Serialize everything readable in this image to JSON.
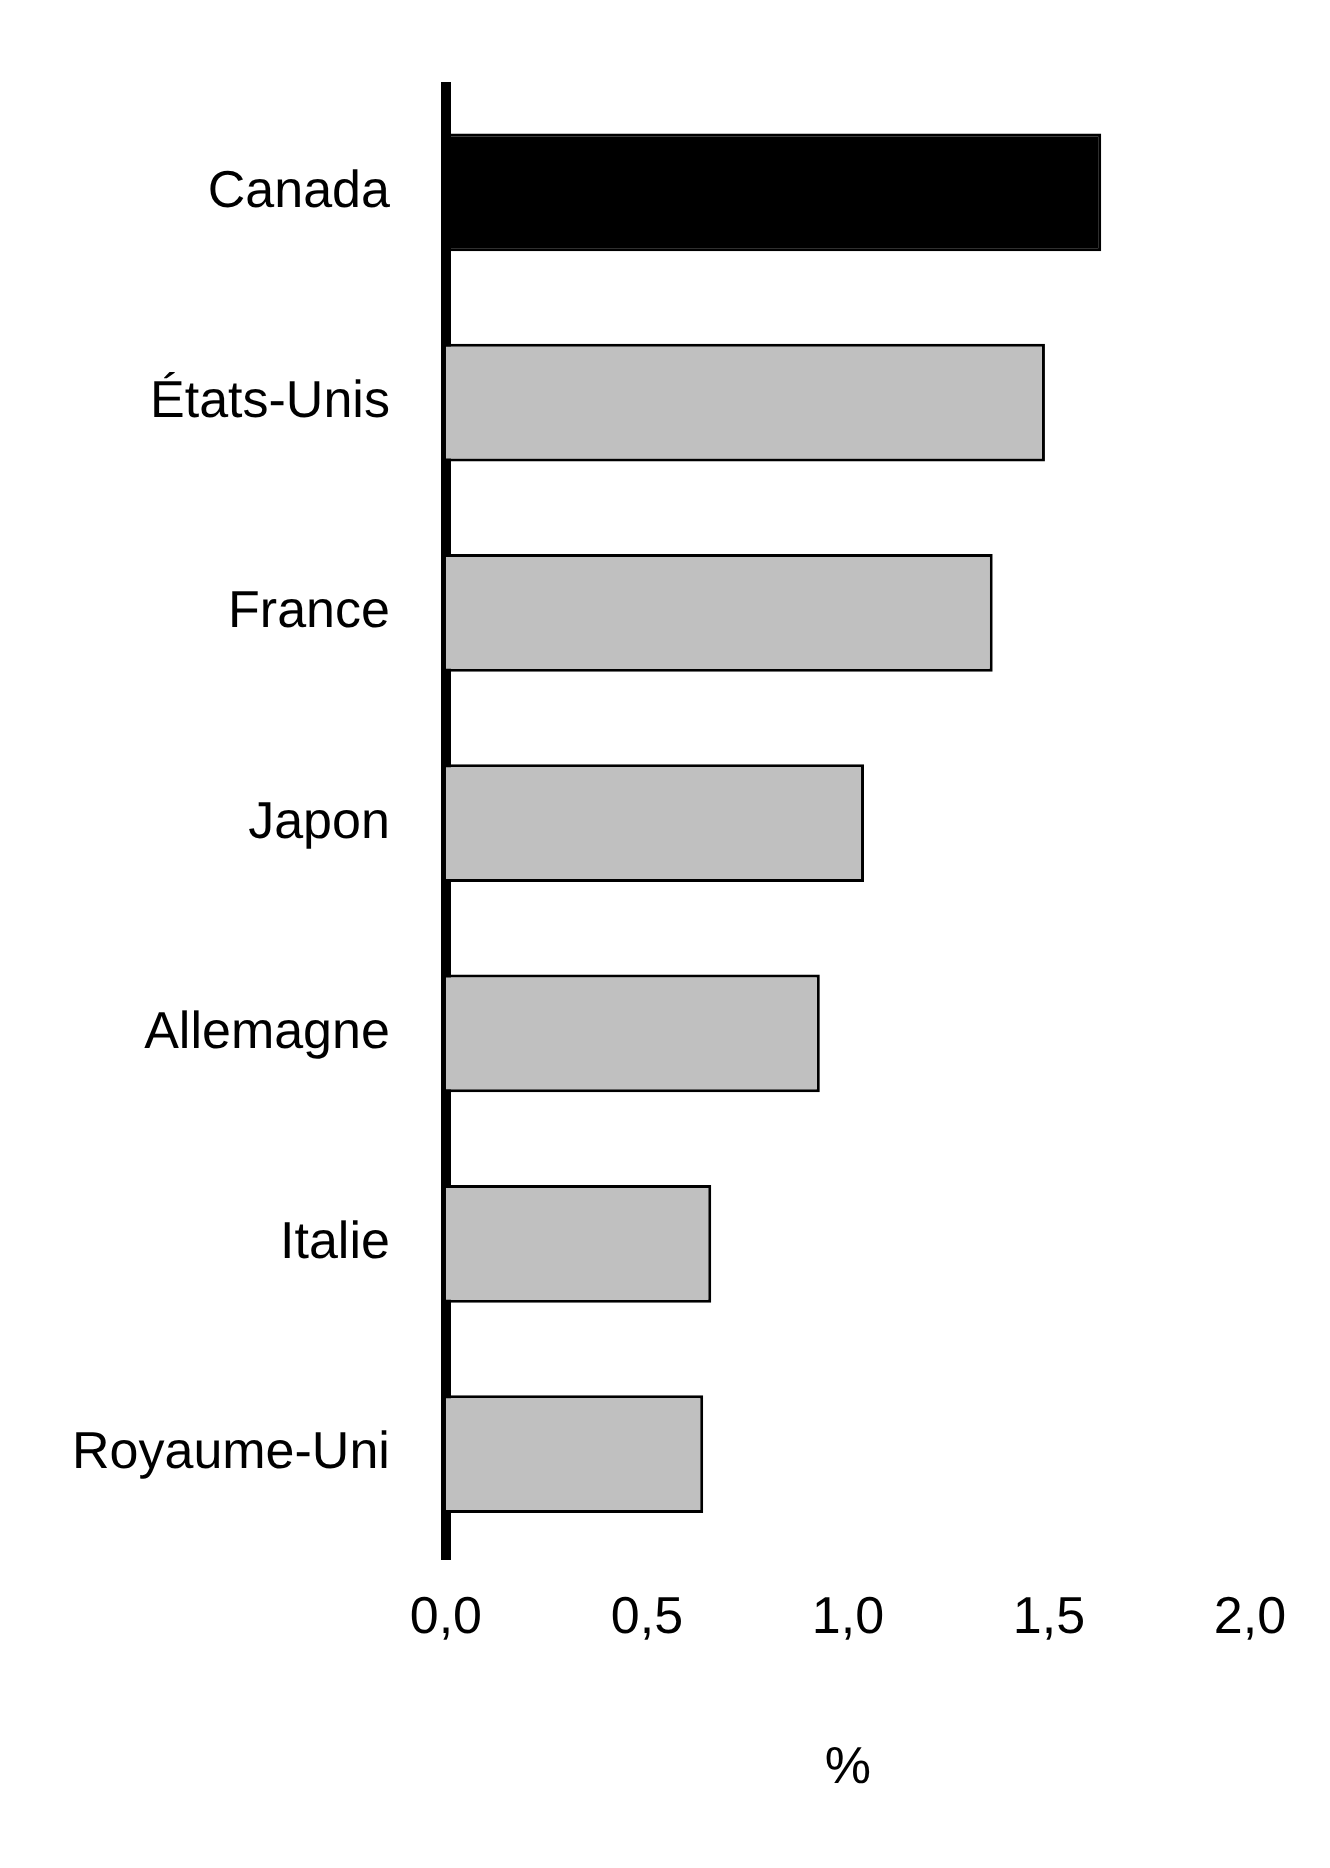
{
  "chart_data": {
    "type": "bar",
    "orientation": "horizontal",
    "xlabel": "%",
    "categories": [
      "Canada",
      "États-Unis",
      "France",
      "Japon",
      "Allemagne",
      "Italie",
      "Royaume-Uni"
    ],
    "values": [
      1.63,
      1.49,
      1.36,
      1.04,
      0.93,
      0.66,
      0.64
    ],
    "colors": [
      "#000000",
      "#c0c0c0",
      "#c0c0c0",
      "#c0c0c0",
      "#c0c0c0",
      "#c0c0c0",
      "#c0c0c0"
    ],
    "xlim": [
      0,
      2
    ],
    "xticks": [
      {
        "value": 0,
        "label": "0,0"
      },
      {
        "value": 0.5,
        "label": "0,5"
      },
      {
        "value": 1,
        "label": "1,0"
      },
      {
        "value": 1.5,
        "label": "1,5"
      },
      {
        "value": 2,
        "label": "2,0"
      }
    ],
    "grid": false,
    "legend": false
  }
}
